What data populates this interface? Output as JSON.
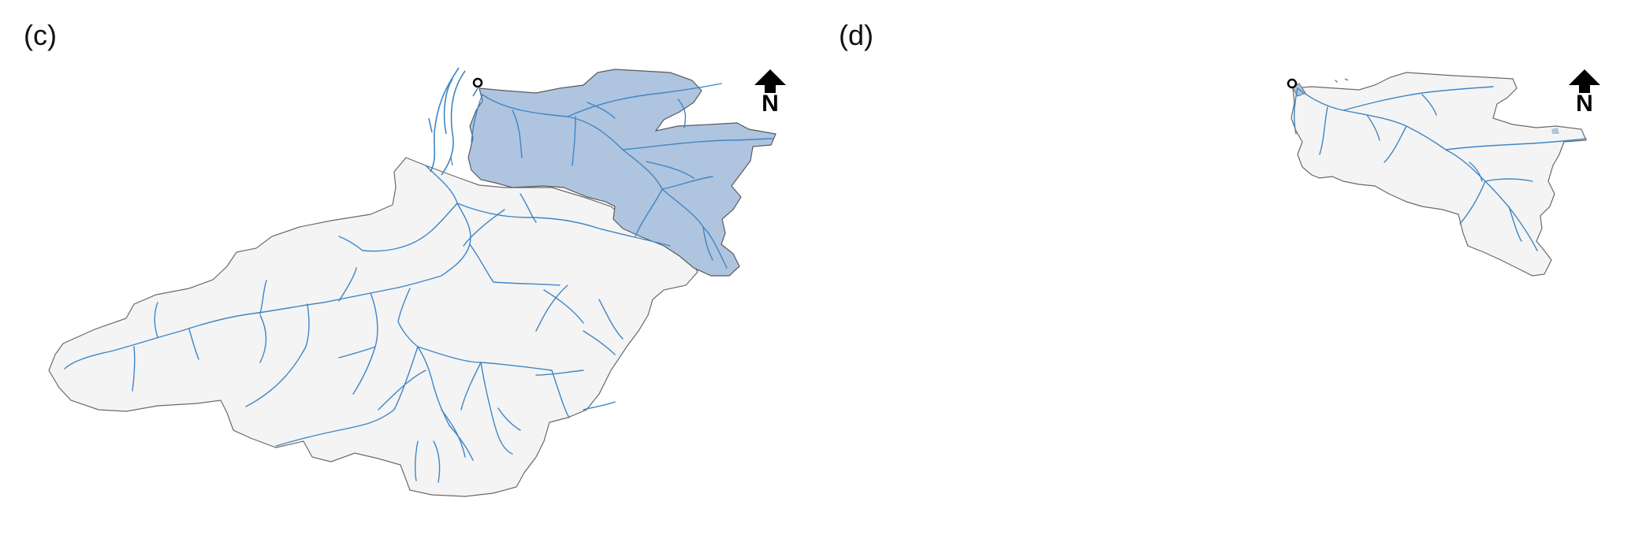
{
  "panels": [
    {
      "label": "(c)",
      "north_label": "N"
    },
    {
      "label": "(d)",
      "north_label": "N"
    }
  ],
  "colors": {
    "basin_fill": "#f4f4f4",
    "basin_outline": "#6a6a6a",
    "subbasin_fill": "#afc4df",
    "river": "#3f86c6",
    "outlet": "#000000"
  },
  "icons": [
    "north-arrow-icon",
    "outlet-marker-icon"
  ]
}
